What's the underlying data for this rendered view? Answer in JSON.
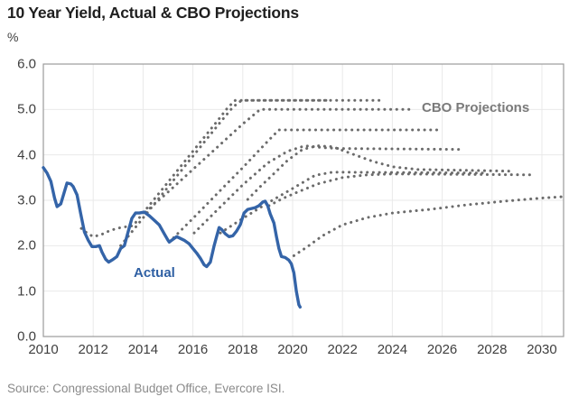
{
  "title": "10 Year Yield, Actual & CBO Projections",
  "y_axis_unit": "%",
  "annotations": {
    "actual_label": "Actual",
    "projections_label": "CBO Projections"
  },
  "source": "Source: Congressional Budget Office, Evercore ISI.",
  "colors": {
    "actual_line": "#3464a8",
    "projection_dots": "#6b6b6b",
    "grid": "#e9e9e9",
    "plot_border": "#9b9b9b",
    "tick_text": "#3f3f3f",
    "actual_label": "#2e5fa3",
    "projections_label": "#7a7a7a"
  },
  "chart_data": {
    "type": "line",
    "title": "10 Year Yield, Actual & CBO Projections",
    "ylabel": "%",
    "xlim": [
      2010,
      2030.87
    ],
    "ylim": [
      0,
      6
    ],
    "grid": true,
    "x_ticks": [
      {
        "label": "2010",
        "value": 2010
      },
      {
        "label": "2012",
        "value": 2012
      },
      {
        "label": "2014",
        "value": 2014
      },
      {
        "label": "2016",
        "value": 2016
      },
      {
        "label": "2018",
        "value": 2018
      },
      {
        "label": "2020",
        "value": 2020
      },
      {
        "label": "2022",
        "value": 2022
      },
      {
        "label": "2024",
        "value": 2024
      },
      {
        "label": "2026",
        "value": 2026
      },
      {
        "label": "2028",
        "value": 2028
      },
      {
        "label": "2030",
        "value": 2030
      }
    ],
    "y_ticks": [
      {
        "label": "0.0",
        "value": 0
      },
      {
        "label": "1.0",
        "value": 1
      },
      {
        "label": "2.0",
        "value": 2
      },
      {
        "label": "3.0",
        "value": 3
      },
      {
        "label": "4.0",
        "value": 4
      },
      {
        "label": "5.0",
        "value": 5
      },
      {
        "label": "6.0",
        "value": 6
      }
    ],
    "series": [
      {
        "name": "CBO projection 1",
        "style": "dotted",
        "points": [
          [
            2011.52,
            2.38
          ],
          [
            2011.75,
            2.28
          ],
          [
            2012.0,
            2.2
          ],
          [
            2012.3,
            2.24
          ],
          [
            2012.7,
            2.34
          ],
          [
            2013.1,
            2.4
          ],
          [
            2013.6,
            2.44
          ],
          [
            2014.0,
            2.72
          ],
          [
            2014.5,
            3.06
          ],
          [
            2015.0,
            3.4
          ],
          [
            2015.5,
            3.74
          ],
          [
            2016.0,
            4.08
          ],
          [
            2016.5,
            4.42
          ],
          [
            2017.0,
            4.76
          ],
          [
            2017.4,
            5.04
          ],
          [
            2017.7,
            5.2
          ],
          [
            2021.5,
            5.2
          ]
        ]
      },
      {
        "name": "CBO projection 2",
        "style": "dotted",
        "points": [
          [
            2013.1,
            2.0
          ],
          [
            2013.6,
            2.34
          ],
          [
            2014.1,
            2.68
          ],
          [
            2014.6,
            3.02
          ],
          [
            2015.1,
            3.36
          ],
          [
            2015.6,
            3.7
          ],
          [
            2016.1,
            4.04
          ],
          [
            2016.6,
            4.38
          ],
          [
            2017.1,
            4.72
          ],
          [
            2017.6,
            5.05
          ],
          [
            2017.95,
            5.2
          ],
          [
            2023.7,
            5.2
          ]
        ]
      },
      {
        "name": "CBO projection 3",
        "style": "dotted",
        "points": [
          [
            2014.1,
            2.74
          ],
          [
            2015.0,
            3.18
          ],
          [
            2016.0,
            3.68
          ],
          [
            2017.0,
            4.18
          ],
          [
            2018.0,
            4.68
          ],
          [
            2018.7,
            5.0
          ],
          [
            2024.7,
            5.0
          ]
        ]
      },
      {
        "name": "CBO projection 4",
        "style": "dotted",
        "points": [
          [
            2015.05,
            2.08
          ],
          [
            2016.0,
            2.6
          ],
          [
            2017.0,
            3.16
          ],
          [
            2018.0,
            3.72
          ],
          [
            2019.0,
            4.3
          ],
          [
            2019.45,
            4.55
          ],
          [
            2025.9,
            4.55
          ]
        ]
      },
      {
        "name": "CBO projection 5",
        "style": "dotted",
        "points": [
          [
            2016.05,
            2.28
          ],
          [
            2017.0,
            2.8
          ],
          [
            2018.0,
            3.34
          ],
          [
            2019.0,
            3.82
          ],
          [
            2019.8,
            4.08
          ],
          [
            2020.5,
            4.2
          ],
          [
            2021.2,
            4.16
          ],
          [
            2021.9,
            4.14
          ],
          [
            2026.8,
            4.12
          ]
        ]
      },
      {
        "name": "CBO projection 6",
        "style": "dotted",
        "points": [
          [
            2017.1,
            2.28
          ],
          [
            2018.0,
            2.6
          ],
          [
            2019.0,
            2.94
          ],
          [
            2020.0,
            3.26
          ],
          [
            2020.9,
            3.55
          ],
          [
            2021.6,
            3.62
          ],
          [
            2027.8,
            3.6
          ]
        ]
      },
      {
        "name": "CBO projection 7",
        "style": "dotted",
        "points": [
          [
            2018.2,
            3.02
          ],
          [
            2018.7,
            3.3
          ],
          [
            2019.2,
            3.56
          ],
          [
            2019.8,
            3.88
          ],
          [
            2020.4,
            4.12
          ],
          [
            2021.0,
            4.2
          ],
          [
            2021.6,
            4.18
          ],
          [
            2022.4,
            4.02
          ],
          [
            2023.2,
            3.86
          ],
          [
            2024.0,
            3.74
          ],
          [
            2025.0,
            3.68
          ],
          [
            2028.9,
            3.64
          ]
        ]
      },
      {
        "name": "CBO projection 8",
        "style": "dotted",
        "points": [
          [
            2019.05,
            2.88
          ],
          [
            2019.6,
            3.04
          ],
          [
            2020.2,
            3.18
          ],
          [
            2021.0,
            3.36
          ],
          [
            2022.0,
            3.5
          ],
          [
            2023.0,
            3.56
          ],
          [
            2024.0,
            3.58
          ],
          [
            2029.7,
            3.56
          ]
        ]
      },
      {
        "name": "CBO projection 9",
        "style": "dotted",
        "points": [
          [
            2020.05,
            1.78
          ],
          [
            2020.6,
            1.98
          ],
          [
            2021.2,
            2.22
          ],
          [
            2022.0,
            2.46
          ],
          [
            2023.0,
            2.62
          ],
          [
            2024.0,
            2.72
          ],
          [
            2025.5,
            2.8
          ],
          [
            2027.0,
            2.9
          ],
          [
            2028.5,
            2.98
          ],
          [
            2030.0,
            3.05
          ],
          [
            2030.85,
            3.08
          ]
        ]
      },
      {
        "name": "Actual",
        "style": "solid",
        "points": [
          [
            2010.0,
            3.72
          ],
          [
            2010.15,
            3.6
          ],
          [
            2010.3,
            3.42
          ],
          [
            2010.45,
            3.05
          ],
          [
            2010.55,
            2.86
          ],
          [
            2010.7,
            2.92
          ],
          [
            2010.85,
            3.2
          ],
          [
            2010.95,
            3.38
          ],
          [
            2011.1,
            3.36
          ],
          [
            2011.2,
            3.3
          ],
          [
            2011.35,
            3.12
          ],
          [
            2011.5,
            2.7
          ],
          [
            2011.65,
            2.3
          ],
          [
            2011.8,
            2.12
          ],
          [
            2011.95,
            1.98
          ],
          [
            2012.1,
            1.98
          ],
          [
            2012.25,
            2.0
          ],
          [
            2012.35,
            1.86
          ],
          [
            2012.5,
            1.7
          ],
          [
            2012.62,
            1.64
          ],
          [
            2012.8,
            1.7
          ],
          [
            2012.95,
            1.76
          ],
          [
            2013.1,
            1.94
          ],
          [
            2013.25,
            2.0
          ],
          [
            2013.4,
            2.3
          ],
          [
            2013.55,
            2.6
          ],
          [
            2013.7,
            2.72
          ],
          [
            2013.85,
            2.72
          ],
          [
            2014.05,
            2.74
          ],
          [
            2014.25,
            2.66
          ],
          [
            2014.45,
            2.56
          ],
          [
            2014.65,
            2.46
          ],
          [
            2014.85,
            2.26
          ],
          [
            2015.0,
            2.12
          ],
          [
            2015.05,
            2.08
          ],
          [
            2015.2,
            2.14
          ],
          [
            2015.35,
            2.2
          ],
          [
            2015.5,
            2.16
          ],
          [
            2015.65,
            2.12
          ],
          [
            2015.85,
            2.04
          ],
          [
            2016.0,
            1.94
          ],
          [
            2016.15,
            1.84
          ],
          [
            2016.3,
            1.72
          ],
          [
            2016.45,
            1.58
          ],
          [
            2016.55,
            1.54
          ],
          [
            2016.7,
            1.64
          ],
          [
            2016.85,
            2.0
          ],
          [
            2016.95,
            2.2
          ],
          [
            2017.05,
            2.4
          ],
          [
            2017.15,
            2.36
          ],
          [
            2017.3,
            2.26
          ],
          [
            2017.45,
            2.2
          ],
          [
            2017.6,
            2.22
          ],
          [
            2017.75,
            2.32
          ],
          [
            2017.9,
            2.46
          ],
          [
            2018.05,
            2.72
          ],
          [
            2018.2,
            2.8
          ],
          [
            2018.35,
            2.82
          ],
          [
            2018.5,
            2.84
          ],
          [
            2018.65,
            2.88
          ],
          [
            2018.8,
            2.96
          ],
          [
            2018.9,
            2.98
          ],
          [
            2019.0,
            2.88
          ],
          [
            2019.1,
            2.7
          ],
          [
            2019.25,
            2.5
          ],
          [
            2019.35,
            2.2
          ],
          [
            2019.45,
            1.94
          ],
          [
            2019.55,
            1.76
          ],
          [
            2019.7,
            1.74
          ],
          [
            2019.85,
            1.68
          ],
          [
            2019.95,
            1.6
          ],
          [
            2020.05,
            1.4
          ],
          [
            2020.15,
            1.0
          ],
          [
            2020.25,
            0.7
          ],
          [
            2020.3,
            0.65
          ]
        ]
      }
    ]
  }
}
